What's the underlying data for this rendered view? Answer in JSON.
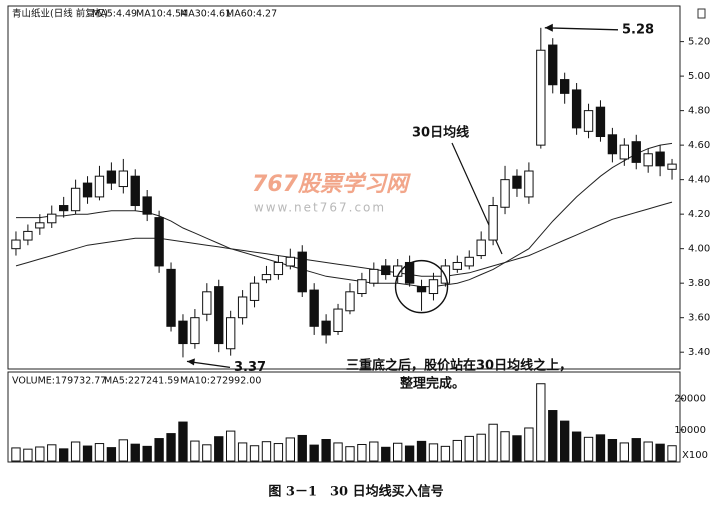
{
  "chart_data": {
    "type": "candlestick",
    "header": [
      "青山纸业(日线 前复权)",
      "MA5:4.49",
      "MA10:4.54",
      "MA30:4.61",
      "MA60:4.27"
    ],
    "volume_header": [
      "VOLUME:179732.77",
      "MA5:227241.59",
      "MA10:272992.00"
    ],
    "open": [
      4.0,
      4.05,
      4.12,
      4.15,
      4.25,
      4.22,
      4.38,
      4.3,
      4.45,
      4.36,
      4.42,
      4.3,
      4.18,
      3.88,
      3.58,
      3.45,
      3.62,
      3.78,
      3.42,
      3.6,
      3.7,
      3.82,
      3.85,
      3.9,
      3.98,
      3.76,
      3.58,
      3.52,
      3.64,
      3.74,
      3.8,
      3.9,
      3.84,
      3.92,
      3.78,
      3.74,
      3.8,
      3.88,
      3.9,
      3.96,
      4.05,
      4.24,
      4.42,
      4.3,
      4.6,
      5.18,
      4.98,
      4.92,
      4.68,
      4.82,
      4.66,
      4.52,
      4.62,
      4.48,
      4.56,
      4.46
    ],
    "high": [
      4.1,
      4.14,
      4.2,
      4.25,
      4.3,
      4.4,
      4.42,
      4.48,
      4.5,
      4.52,
      4.46,
      4.34,
      4.22,
      3.92,
      3.62,
      3.65,
      3.8,
      3.82,
      3.64,
      3.76,
      3.84,
      3.9,
      3.96,
      4.0,
      4.02,
      3.8,
      3.62,
      3.68,
      3.8,
      3.86,
      3.92,
      3.94,
      3.94,
      3.96,
      3.82,
      3.86,
      3.94,
      3.96,
      3.99,
      4.1,
      4.3,
      4.48,
      4.46,
      4.5,
      5.28,
      5.22,
      5.02,
      4.96,
      4.84,
      4.86,
      4.7,
      4.64,
      4.66,
      4.58,
      4.6,
      4.52
    ],
    "low": [
      3.96,
      4.02,
      4.08,
      4.12,
      4.18,
      4.2,
      4.26,
      4.28,
      4.34,
      4.32,
      4.22,
      4.16,
      3.86,
      3.52,
      3.37,
      3.42,
      3.58,
      3.4,
      3.38,
      3.56,
      3.66,
      3.8,
      3.82,
      3.88,
      3.72,
      3.5,
      3.45,
      3.5,
      3.62,
      3.72,
      3.78,
      3.82,
      3.8,
      3.78,
      3.64,
      3.7,
      3.78,
      3.86,
      3.88,
      3.94,
      4.02,
      4.2,
      4.3,
      4.26,
      4.58,
      4.9,
      4.84,
      4.66,
      4.64,
      4.62,
      4.5,
      4.48,
      4.46,
      4.44,
      4.42,
      4.4
    ],
    "close": [
      4.05,
      4.1,
      4.15,
      4.2,
      4.22,
      4.35,
      4.3,
      4.42,
      4.38,
      4.45,
      4.25,
      4.2,
      3.9,
      3.55,
      3.45,
      3.6,
      3.75,
      3.45,
      3.6,
      3.72,
      3.8,
      3.85,
      3.92,
      3.95,
      3.75,
      3.55,
      3.5,
      3.65,
      3.75,
      3.82,
      3.88,
      3.85,
      3.9,
      3.8,
      3.75,
      3.82,
      3.9,
      3.92,
      3.95,
      4.05,
      4.25,
      4.4,
      4.35,
      4.45,
      5.15,
      4.95,
      4.9,
      4.7,
      4.8,
      4.65,
      4.55,
      4.6,
      4.5,
      4.55,
      4.48,
      4.49
    ],
    "ma_lines": [
      {
        "color": "#222222",
        "values": [
          4.18,
          4.18,
          4.18,
          4.19,
          4.19,
          4.2,
          4.2,
          4.21,
          4.22,
          4.22,
          4.22,
          4.21,
          4.19,
          4.16,
          4.12,
          4.09,
          4.06,
          4.03,
          4.0,
          3.98,
          3.96,
          3.94,
          3.92,
          3.9,
          3.88,
          3.86,
          3.84,
          3.83,
          3.82,
          3.81,
          3.8,
          3.8,
          3.8,
          3.79,
          3.78,
          3.78,
          3.79,
          3.8,
          3.82,
          3.85,
          3.88,
          3.92,
          3.96,
          4.0,
          4.08,
          4.16,
          4.23,
          4.3,
          4.36,
          4.42,
          4.47,
          4.51,
          4.55,
          4.58,
          4.6,
          4.61
        ]
      },
      {
        "color": "#222222",
        "values": [
          3.9,
          3.92,
          3.94,
          3.96,
          3.98,
          4.0,
          4.02,
          4.03,
          4.04,
          4.05,
          4.06,
          4.06,
          4.06,
          4.05,
          4.04,
          4.03,
          4.02,
          4.01,
          4.0,
          3.99,
          3.98,
          3.97,
          3.96,
          3.95,
          3.94,
          3.93,
          3.92,
          3.91,
          3.9,
          3.89,
          3.88,
          3.87,
          3.86,
          3.85,
          3.84,
          3.84,
          3.84,
          3.85,
          3.86,
          3.88,
          3.9,
          3.92,
          3.94,
          3.96,
          3.99,
          4.02,
          4.05,
          4.08,
          4.11,
          4.14,
          4.17,
          4.19,
          4.21,
          4.23,
          4.25,
          4.27
        ]
      }
    ],
    "ylim": [
      3.32,
      5.36
    ],
    "yticks": [
      {
        "value": 3.4,
        "label": "3.40"
      },
      {
        "value": 3.6,
        "label": "3.60"
      },
      {
        "value": 3.8,
        "label": "3.80"
      },
      {
        "value": 4.0,
        "label": "4.00"
      },
      {
        "value": 4.2,
        "label": "4.20"
      },
      {
        "value": 4.4,
        "label": "4.40"
      },
      {
        "value": 4.6,
        "label": "4.60"
      },
      {
        "value": 4.8,
        "label": "4.80"
      },
      {
        "value": 5.0,
        "label": "5.00"
      },
      {
        "value": 5.2,
        "label": "5.20"
      }
    ],
    "volume": [
      4200,
      3800,
      4500,
      5200,
      3900,
      6100,
      4800,
      5600,
      4300,
      6800,
      5400,
      4700,
      7200,
      8800,
      12500,
      6400,
      5200,
      7800,
      9600,
      5800,
      4900,
      6200,
      5600,
      7400,
      8200,
      5100,
      6900,
      5800,
      4600,
      5300,
      6100,
      4400,
      5700,
      4800,
      6300,
      5500,
      4700,
      6600,
      7900,
      8600,
      11800,
      9400,
      8100,
      10600,
      24800,
      16200,
      12800,
      9300,
      7600,
      8400,
      6900,
      5800,
      7200,
      6100,
      5400,
      4900
    ],
    "vlim": [
      0,
      26000
    ],
    "vticks": [
      10000,
      20000
    ],
    "volume_unit": "X100",
    "peak_label": 5.28,
    "trough_label": 3.37,
    "ma30_note": "30日均线",
    "note_lines": [
      "三重底之后，股价站在30日均线之上，",
      "整理完成。"
    ],
    "watermark": [
      "767股票学习网",
      "www.net767.com"
    ],
    "caption": "图 3－1　30 日均线买入信号"
  }
}
